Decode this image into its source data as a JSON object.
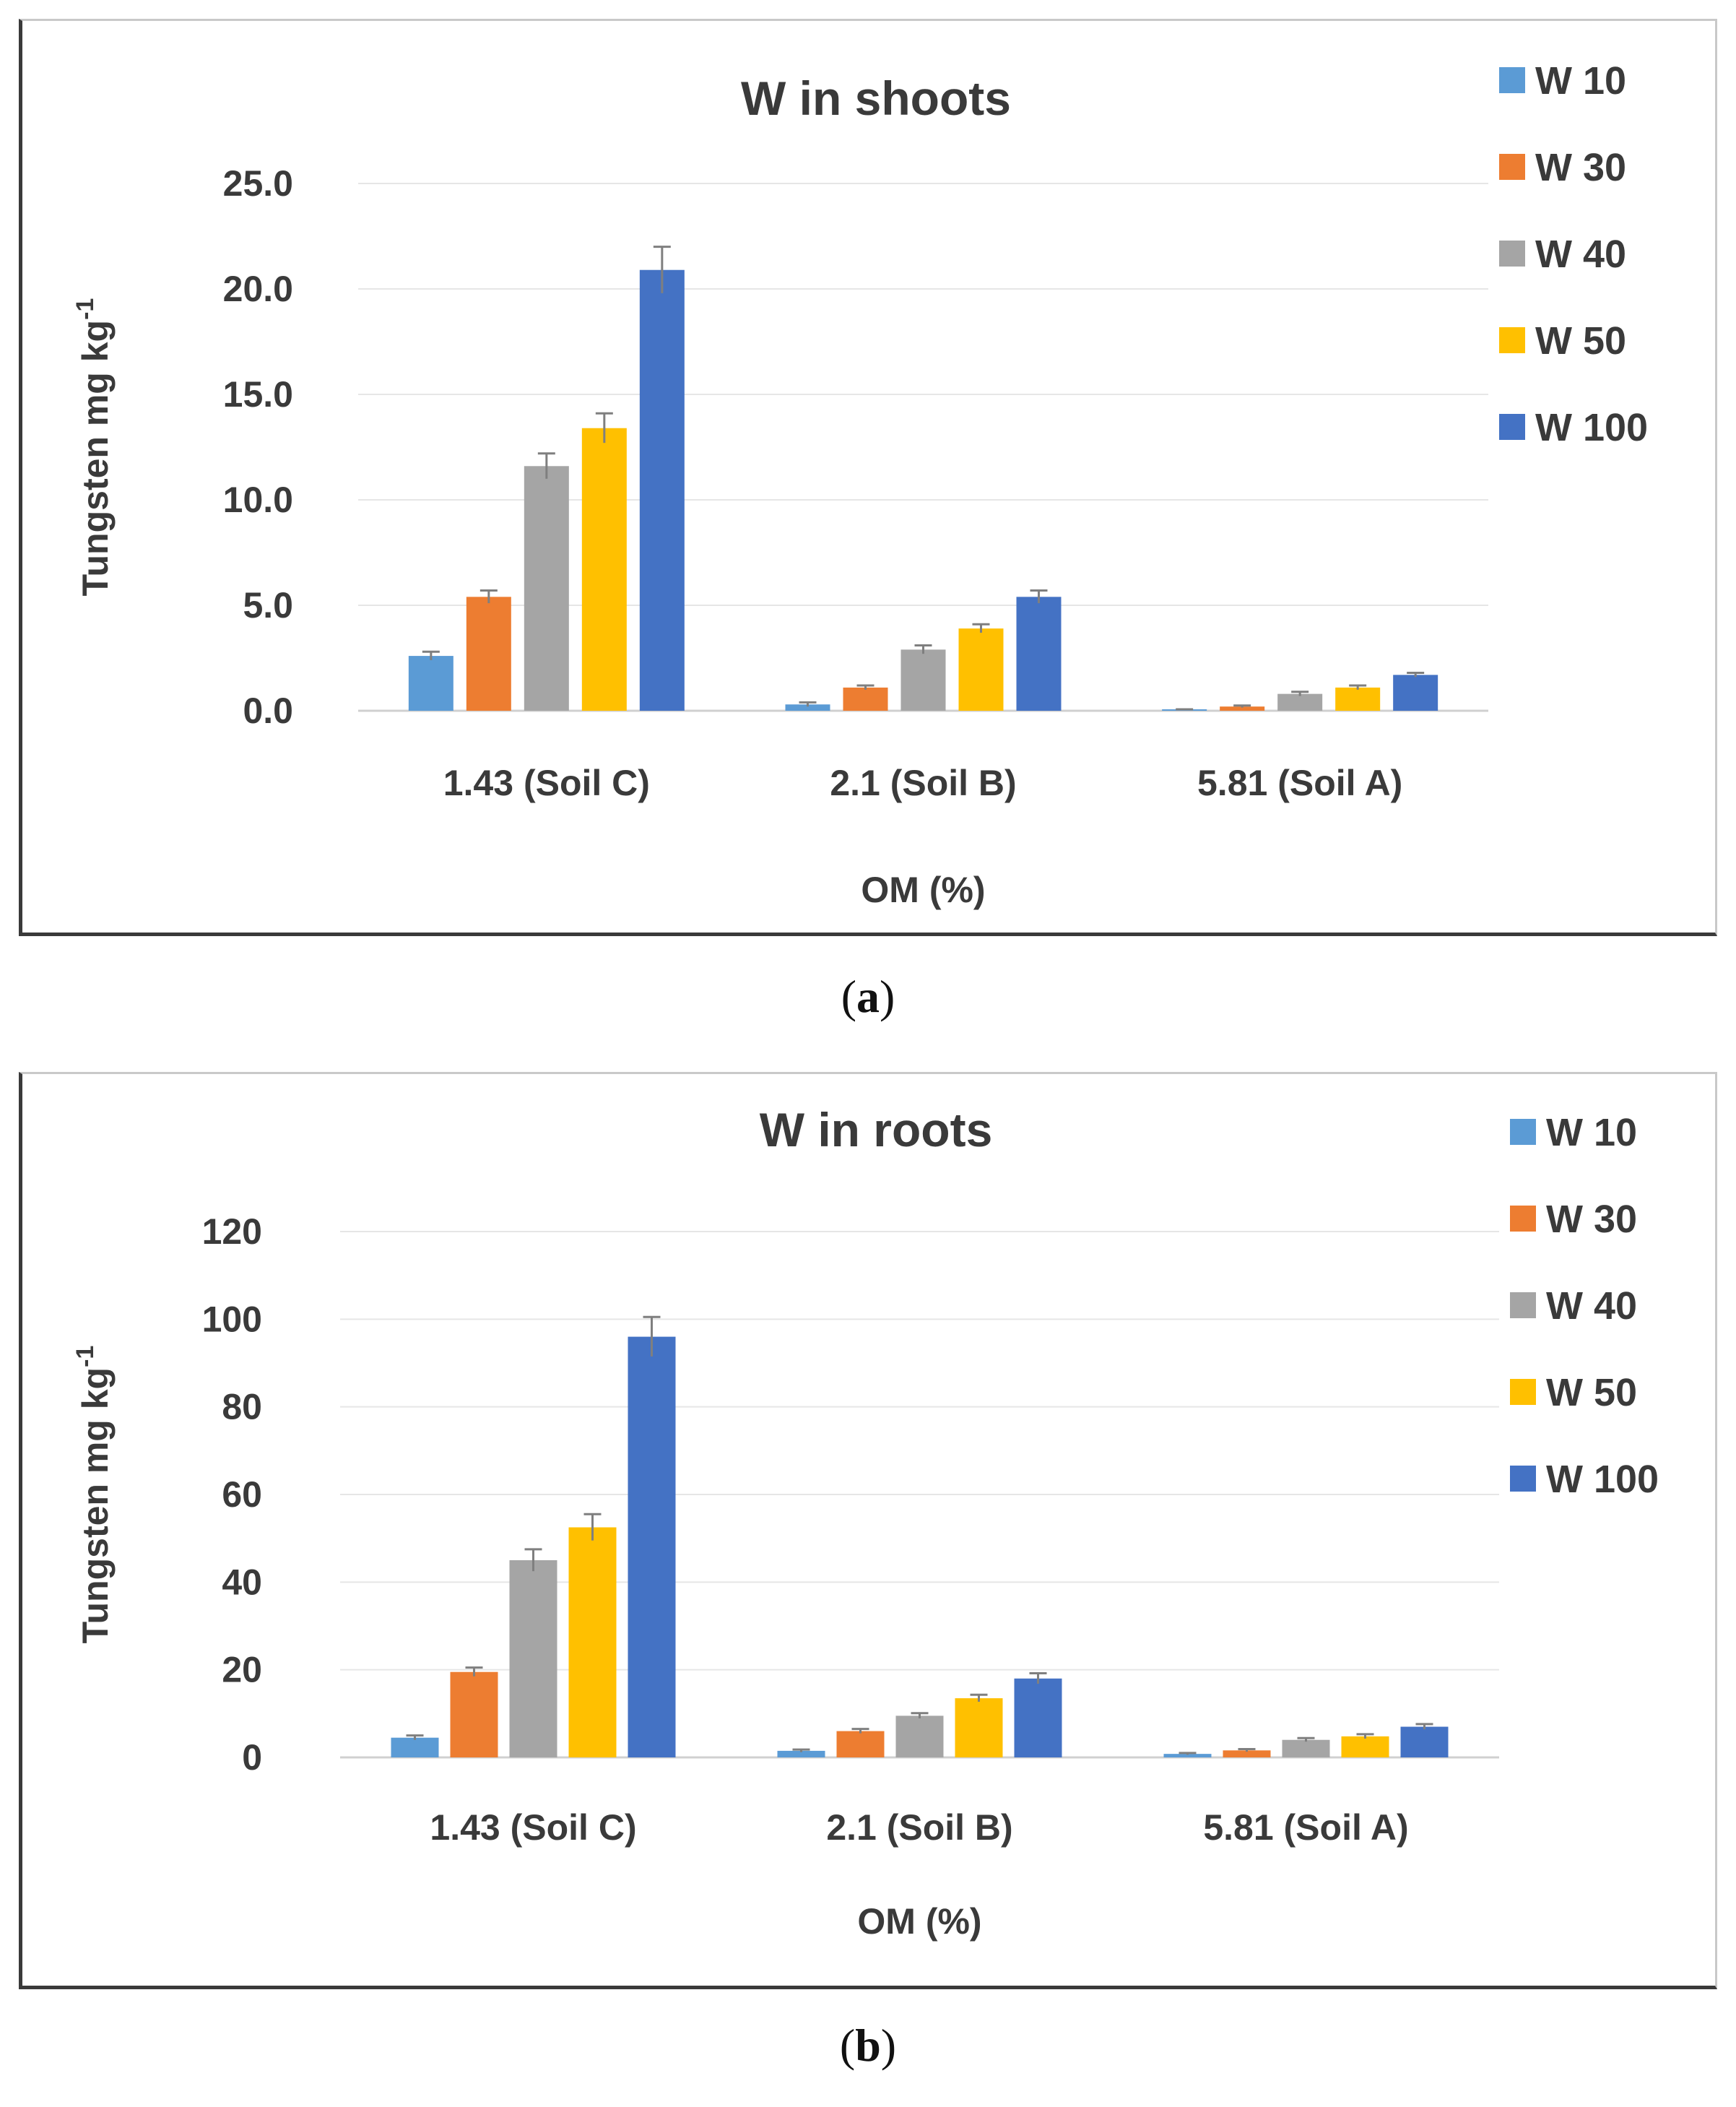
{
  "captions": {
    "a": "a",
    "b": "b"
  },
  "legend": [
    {
      "label": "W 10",
      "color": "#5b9bd5"
    },
    {
      "label": "W 30",
      "color": "#ed7d31"
    },
    {
      "label": "W 40",
      "color": "#a5a5a5"
    },
    {
      "label": "W 50",
      "color": "#ffc000"
    },
    {
      "label": "W 100",
      "color": "#4472c4"
    }
  ],
  "chart_data": [
    {
      "type": "bar",
      "title": "W in shoots",
      "xlabel": "OM (%)",
      "ylabel": "Tungsten mg kg",
      "ylabel_superscript": "-1",
      "categories": [
        "1.43 (Soil C)",
        "2.1 (Soil B)",
        "5.81 (Soil A)"
      ],
      "ylim": [
        0,
        25
      ],
      "yticks": [
        0,
        5,
        10,
        15,
        20,
        25
      ],
      "ytick_labels": [
        "0.0",
        "5.0",
        "10.0",
        "15.0",
        "20.0",
        "25.0"
      ],
      "series": [
        {
          "name": "W 10",
          "values": [
            2.6,
            0.3,
            0.05
          ],
          "errors": [
            0.2,
            0.1,
            0.02
          ]
        },
        {
          "name": "W 30",
          "values": [
            5.4,
            1.1,
            0.2
          ],
          "errors": [
            0.3,
            0.1,
            0.05
          ]
        },
        {
          "name": "W 40",
          "values": [
            11.6,
            2.9,
            0.8
          ],
          "errors": [
            0.6,
            0.2,
            0.1
          ]
        },
        {
          "name": "W 50",
          "values": [
            13.4,
            3.9,
            1.1
          ],
          "errors": [
            0.7,
            0.2,
            0.1
          ]
        },
        {
          "name": "W 100",
          "values": [
            20.9,
            5.4,
            1.7
          ],
          "errors": [
            1.1,
            0.3,
            0.1
          ]
        }
      ],
      "grid": true,
      "legend_position": "top-right"
    },
    {
      "type": "bar",
      "title": "W in roots",
      "xlabel": "OM (%)",
      "ylabel": "Tungsten mg kg",
      "ylabel_superscript": "-1",
      "categories": [
        "1.43 (Soil C)",
        "2.1 (Soil B)",
        "5.81 (Soil A)"
      ],
      "ylim": [
        0,
        120
      ],
      "yticks": [
        0,
        20,
        40,
        60,
        80,
        100,
        120
      ],
      "ytick_labels": [
        "0",
        "20",
        "40",
        "60",
        "80",
        "100",
        "120"
      ],
      "series": [
        {
          "name": "W 10",
          "values": [
            4.5,
            1.5,
            0.8
          ],
          "errors": [
            0.5,
            0.3,
            0.2
          ]
        },
        {
          "name": "W 30",
          "values": [
            19.5,
            6.0,
            1.6
          ],
          "errors": [
            1.0,
            0.5,
            0.3
          ]
        },
        {
          "name": "W 40",
          "values": [
            45.0,
            9.5,
            4.0
          ],
          "errors": [
            2.5,
            0.6,
            0.4
          ]
        },
        {
          "name": "W 50",
          "values": [
            52.5,
            13.5,
            4.8
          ],
          "errors": [
            3.0,
            0.8,
            0.5
          ]
        },
        {
          "name": "W 100",
          "values": [
            96.0,
            18.0,
            7.0
          ],
          "errors": [
            4.5,
            1.2,
            0.6
          ]
        }
      ],
      "grid": true,
      "legend_position": "top-right"
    }
  ]
}
